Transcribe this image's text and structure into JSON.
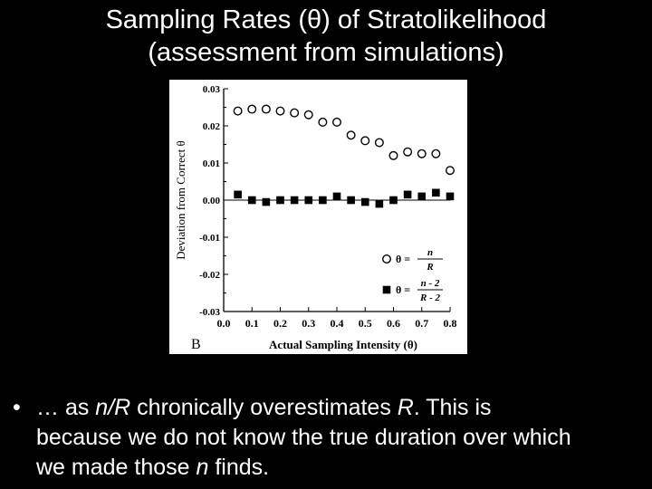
{
  "slide": {
    "title_line1": "Sampling Rates (θ) of Stratolikelihood",
    "title_line2": "(assessment from simulations)",
    "bullet_marker": "•",
    "bullet_line1_a": "… as ",
    "bullet_line1_em1": "n",
    "bullet_line1_slash": "/",
    "bullet_line1_em2": "R",
    "bullet_line1_b": " chronically overestimates ",
    "bullet_line1_em3": "R",
    "bullet_line1_c": ".  This is",
    "bullet_line2": "because we do not know the true duration over which",
    "bullet_line3_a": "we made those ",
    "bullet_line3_em": "n",
    "bullet_line3_b": " finds."
  },
  "colors": {
    "background": "#000000",
    "text": "#ffffff",
    "figure_bg": "#ffffff",
    "ink": "#000000"
  },
  "chart_data": {
    "type": "scatter",
    "panel_label": "B",
    "xlabel": "Actual Sampling Intensity (θ)",
    "ylabel": "Deviation from Correct θ",
    "xlim": [
      0.0,
      0.8
    ],
    "ylim": [
      -0.03,
      0.03
    ],
    "x_ticks": [
      "0.0",
      "0.1",
      "0.2",
      "0.3",
      "0.4",
      "0.5",
      "0.6",
      "0.7",
      "0.8"
    ],
    "y_ticks": [
      "0.03",
      "0.02",
      "0.01",
      "0.00",
      "-0.01",
      "-0.02",
      "-0.03"
    ],
    "zero_line": true,
    "legend": {
      "position": "bottom-right",
      "entries": [
        {
          "marker": "open-circle",
          "lhs": "θ =",
          "numerator": "n",
          "denominator": "R"
        },
        {
          "marker": "filled-square",
          "lhs": "θ =",
          "numerator": "n - 2",
          "denominator": "R - 2"
        }
      ]
    },
    "series": [
      {
        "marker": "open-circle",
        "x": [
          0.05,
          0.1,
          0.15,
          0.2,
          0.25,
          0.3,
          0.35,
          0.4,
          0.45,
          0.5,
          0.55,
          0.6,
          0.65,
          0.7,
          0.75,
          0.8
        ],
        "y": [
          0.024,
          0.0245,
          0.0245,
          0.024,
          0.0235,
          0.023,
          0.021,
          0.021,
          0.0175,
          0.016,
          0.0155,
          0.012,
          0.013,
          0.0125,
          0.0125,
          0.008
        ]
      },
      {
        "marker": "filled-square",
        "x": [
          0.05,
          0.1,
          0.15,
          0.2,
          0.25,
          0.3,
          0.35,
          0.4,
          0.45,
          0.5,
          0.55,
          0.6,
          0.65,
          0.7,
          0.75,
          0.8
        ],
        "y": [
          0.0015,
          0.0,
          -0.0005,
          0.0,
          0.0,
          0.0,
          0.0,
          0.001,
          0.0,
          -0.0005,
          -0.001,
          0.0,
          0.0015,
          0.001,
          0.002,
          0.001
        ]
      }
    ]
  }
}
